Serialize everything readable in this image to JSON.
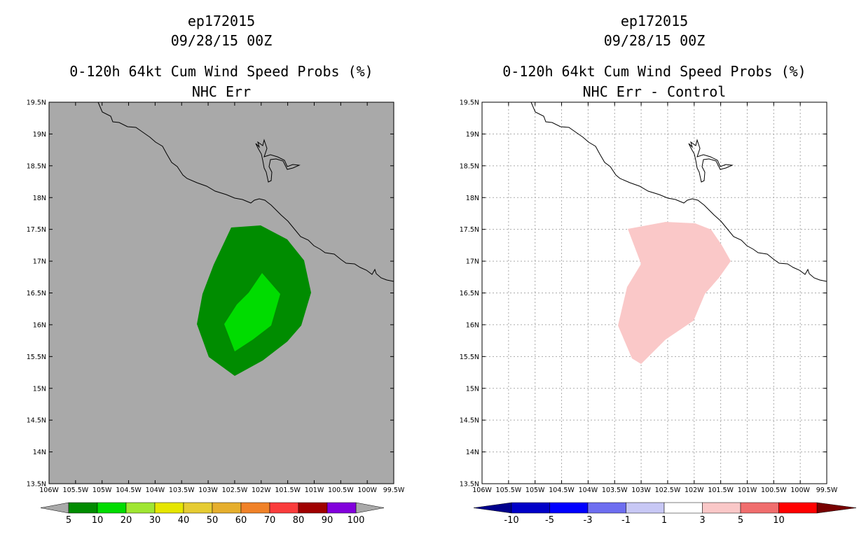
{
  "left_panel": {
    "title_line1": "ep172015",
    "title_line2": "09/28/15 00Z",
    "title_line3": "0-120h 64kt Cum Wind Speed Probs (%)",
    "title_line4": "NHC Err",
    "background_color": "#a9a9a9",
    "outer_contour_color": "#008c00",
    "inner_contour_color": "#00dc00",
    "colorbar_labels": [
      "5",
      "10",
      "20",
      "30",
      "40",
      "50",
      "60",
      "70",
      "80",
      "90",
      "100"
    ],
    "colorbar_colors": [
      "#008c00",
      "#00dc00",
      "#a0e632",
      "#e6e600",
      "#e6cc32",
      "#e6af2d",
      "#f08228",
      "#fa3c3c",
      "#a00000",
      "#8200dc"
    ]
  },
  "right_panel": {
    "title_line1": "ep172015",
    "title_line2": "09/28/15 00Z",
    "title_line3": "0-120h 64kt Cum Wind Speed Probs (%)",
    "title_line4": "NHC Err - Control",
    "background_color": "#ffffff",
    "difference_contour_color": "#fac8c8",
    "colorbar_labels": [
      "-10",
      "-5",
      "-3",
      "-1",
      "1",
      "3",
      "5",
      "10"
    ],
    "colorbar_colors": [
      "#0000c8",
      "#0000ff",
      "#6e6ef0",
      "#c8c8f5",
      "#ffffff",
      "#fac8c8",
      "#f06e6e",
      "#ff0000"
    ],
    "colorbar_end_colors": [
      "#00008c",
      "#780000"
    ]
  },
  "axes": {
    "lat_labels": [
      "19.5N",
      "19N",
      "18.5N",
      "18N",
      "17.5N",
      "17N",
      "16.5N",
      "16N",
      "15.5N",
      "15N",
      "14.5N",
      "14N",
      "13.5N"
    ],
    "lon_labels": [
      "106W",
      "105.5W",
      "105W",
      "104.5W",
      "104W",
      "103.5W",
      "103W",
      "102.5W",
      "102W",
      "101.5W",
      "101W",
      "100.5W",
      "100W",
      "99.5W"
    ],
    "lat_range": [
      13.5,
      19.5
    ],
    "lon_range": [
      -106,
      -99.5
    ]
  }
}
